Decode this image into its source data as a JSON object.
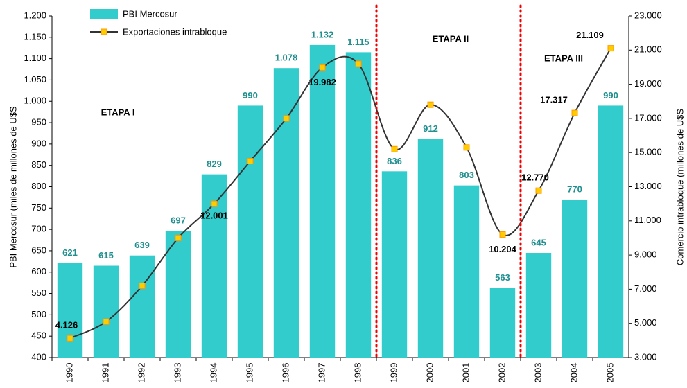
{
  "chart_data": {
    "type": "bar-line",
    "categories": [
      "1990",
      "1991",
      "1992",
      "1993",
      "1994",
      "1995",
      "1996",
      "1997",
      "1998",
      "1999",
      "2000",
      "2001",
      "2002",
      "2003",
      "2004",
      "2005"
    ],
    "series": [
      {
        "name": "PBI Mercosur",
        "type": "bar",
        "color": "#33cccc",
        "label_color": "#1f8f8f",
        "values": [
          621,
          615,
          639,
          697,
          829,
          990,
          1078,
          1132,
          1115,
          836,
          912,
          803,
          563,
          645,
          770,
          990
        ],
        "value_labels": [
          "621",
          "615",
          "639",
          "697",
          "829",
          "990",
          "1.078",
          "1.132",
          "1.115",
          "836",
          "912",
          "803",
          "563",
          "645",
          "770",
          "990"
        ]
      },
      {
        "name": "Exportaciones intrabloque",
        "type": "line",
        "axis": "y2",
        "color": "#333333",
        "marker_color": "#ffcc00",
        "marker_edge": "#ff9900",
        "values": [
          4126,
          5100,
          7200,
          10000,
          12001,
          14500,
          17000,
          19982,
          20200,
          15200,
          17800,
          15300,
          10204,
          12770,
          17317,
          21109
        ],
        "value_labels": [
          "4.126",
          null,
          null,
          null,
          "12.001",
          null,
          null,
          "19.982",
          null,
          null,
          null,
          null,
          "10.204",
          "12.770",
          "17.317",
          "21.109"
        ]
      }
    ],
    "ylabel": "PBI Mercosur (miles de millones de U$S",
    "y2label": "Comercio intrabloque (millones de U$S",
    "ylim": [
      400,
      1200
    ],
    "yticks": [
      400,
      450,
      500,
      550,
      600,
      650,
      700,
      750,
      800,
      850,
      900,
      950,
      {
        "value": 1000,
        "label": "1.000"
      },
      {
        "value": 1050,
        "label": "1.050"
      },
      {
        "value": 1100,
        "label": "1.100"
      },
      {
        "value": 1150,
        "label": "1.150"
      },
      {
        "value": 1200,
        "label": "1.200"
      }
    ],
    "y2lim": [
      3000,
      23000
    ],
    "y2ticks": [
      {
        "value": 3000,
        "label": "3.000"
      },
      {
        "value": 5000,
        "label": "5.000"
      },
      {
        "value": 7000,
        "label": "7.000"
      },
      {
        "value": 9000,
        "label": "9.000"
      },
      {
        "value": 11000,
        "label": "11.000"
      },
      {
        "value": 13000,
        "label": "13.000"
      },
      {
        "value": 15000,
        "label": "15.000"
      },
      {
        "value": 17000,
        "label": "17.000"
      },
      {
        "value": 19000,
        "label": "19.000"
      },
      {
        "value": 21000,
        "label": "21.000"
      },
      {
        "value": 23000,
        "label": "23.000"
      }
    ],
    "annotations": [
      "ETAPA I",
      "ETAPA II",
      "ETAPA III"
    ],
    "divider_color": "#ee0000",
    "grid": false
  }
}
